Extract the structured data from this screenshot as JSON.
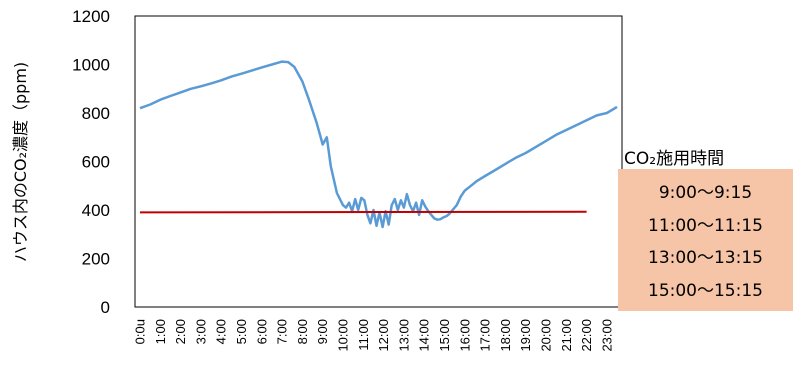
{
  "chart_data": {
    "type": "line",
    "title": "",
    "xlabel": "",
    "ylabel": "ハウス内のCO₂濃度（ppm)",
    "ylim": [
      0,
      1200
    ],
    "yticks": [
      "0",
      "200",
      "400",
      "600",
      "800",
      "1000",
      "1200"
    ],
    "xtick_labels": [
      "0:0u",
      "1:00",
      "2:00",
      "3:00",
      "4:00",
      "5:00",
      "6:00",
      "7:00",
      "8:00",
      "9:00",
      "10:00",
      "11:00",
      "12:00",
      "13:00",
      "14:00",
      "15:00",
      "16:00",
      "17:00",
      "18:00",
      "19:00",
      "20:00",
      "21:00",
      "22:00",
      "23:00"
    ],
    "grid": false,
    "series": [
      {
        "name": "",
        "color": "#5b9bd5",
        "x": [
          0,
          0.5,
          1,
          1.5,
          2,
          2.5,
          3,
          3.5,
          4,
          4.5,
          5,
          5.5,
          6,
          6.5,
          7,
          7.3,
          7.6,
          8,
          8.3,
          8.7,
          9,
          9.2,
          9.4,
          9.7,
          10,
          10.15,
          10.3,
          10.45,
          10.6,
          10.75,
          10.9,
          11.05,
          11.2,
          11.35,
          11.5,
          11.65,
          11.8,
          11.95,
          12.1,
          12.25,
          12.4,
          12.55,
          12.7,
          12.85,
          13,
          13.15,
          13.3,
          13.45,
          13.6,
          13.75,
          13.9,
          14.05,
          14.2,
          14.35,
          14.5,
          14.65,
          14.8,
          14.95,
          15.1,
          15.25,
          15.4,
          15.6,
          15.8,
          16,
          16.3,
          16.6,
          17,
          17.5,
          18,
          18.5,
          19,
          19.5,
          20,
          20.5,
          21,
          21.5,
          22,
          22.5,
          23,
          23.5
        ],
        "values": [
          820,
          835,
          855,
          870,
          885,
          900,
          910,
          922,
          935,
          950,
          962,
          975,
          988,
          1000,
          1012,
          1010,
          990,
          930,
          860,
          760,
          670,
          700,
          580,
          470,
          420,
          410,
          430,
          395,
          445,
          400,
          450,
          440,
          380,
          345,
          400,
          335,
          390,
          330,
          395,
          340,
          420,
          445,
          400,
          440,
          410,
          465,
          420,
          395,
          430,
          380,
          440,
          415,
          395,
          380,
          365,
          360,
          362,
          370,
          375,
          385,
          400,
          420,
          455,
          480,
          500,
          520,
          540,
          565,
          590,
          615,
          635,
          660,
          685,
          710,
          730,
          750,
          770,
          790,
          800,
          825
        ]
      },
      {
        "name": "",
        "color": "#c00000",
        "x": [
          0,
          22
        ],
        "values": [
          390,
          393
        ]
      }
    ]
  },
  "annotation": {
    "title": "CO₂施用時間",
    "lines": [
      "9:00〜9:15",
      "11:00〜11:15",
      "13:00〜13:15",
      "15:00〜15:15"
    ]
  }
}
